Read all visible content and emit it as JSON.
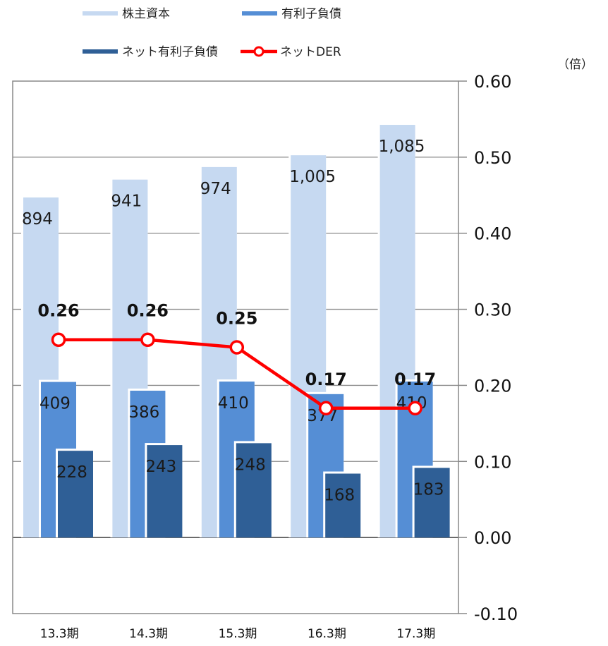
{
  "chart_data": {
    "type": "bar",
    "categories": [
      "13.3期",
      "14.3期",
      "15.3期",
      "16.3期",
      "17.3期"
    ],
    "series": [
      {
        "name": "株主資本",
        "kind": "bar",
        "color": "#c6d9f1",
        "values": [
          894,
          941,
          974,
          1005,
          1085
        ],
        "labels": [
          "894",
          "941",
          "974",
          "1,005",
          "1,085"
        ]
      },
      {
        "name": "有利子負債",
        "kind": "bar",
        "color": "#558ed5",
        "values": [
          409,
          386,
          410,
          377,
          410
        ],
        "labels": [
          "409",
          "386",
          "410",
          "377",
          "410"
        ]
      },
      {
        "name": "ネット有利子負債",
        "kind": "bar",
        "color": "#2f5f96",
        "values": [
          228,
          243,
          248,
          168,
          183
        ],
        "labels": [
          "228",
          "243",
          "248",
          "168",
          "183"
        ]
      },
      {
        "name": "ネットDER",
        "kind": "line",
        "color": "#ff0000",
        "axis": "right",
        "values": [
          0.26,
          0.26,
          0.25,
          0.17,
          0.17
        ],
        "labels": [
          "0.26",
          "0.26",
          "0.25",
          "0.17",
          "0.17"
        ]
      }
    ],
    "y_right": {
      "unit": "（倍）",
      "ticks": [
        "0.60",
        "0.50",
        "0.40",
        "0.30",
        "0.20",
        "0.10",
        "0.00",
        "-0.10"
      ],
      "range": [
        -0.1,
        0.6
      ]
    },
    "y_left_range": [
      -200,
      1200
    ],
    "grid": true,
    "legend_position": "top"
  }
}
